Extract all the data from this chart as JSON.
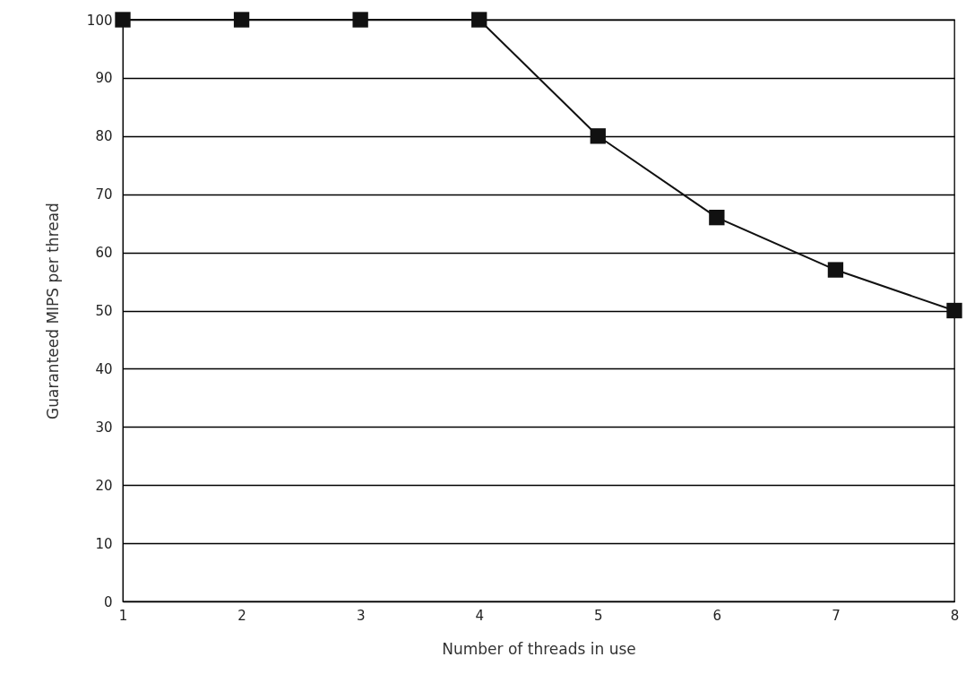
{
  "chart_data": {
    "type": "line",
    "xlabel": "Number of threads in use",
    "ylabel": "Guaranteed MIPS per thread",
    "x": [
      1,
      2,
      3,
      4,
      5,
      6,
      7,
      8
    ],
    "series": [
      {
        "color": "#111111",
        "values": [
          100,
          100,
          100,
          100,
          80,
          66,
          57,
          50
        ]
      }
    ],
    "xlim": [
      1,
      8
    ],
    "xticks": [
      1,
      2,
      3,
      4,
      5,
      6,
      7,
      8
    ],
    "ylim": [
      0,
      100
    ],
    "yticks": [
      0,
      10,
      20,
      30,
      40,
      50,
      60,
      70,
      80,
      90,
      100
    ],
    "grid": "y",
    "marker": "square",
    "line_style": "solid"
  }
}
